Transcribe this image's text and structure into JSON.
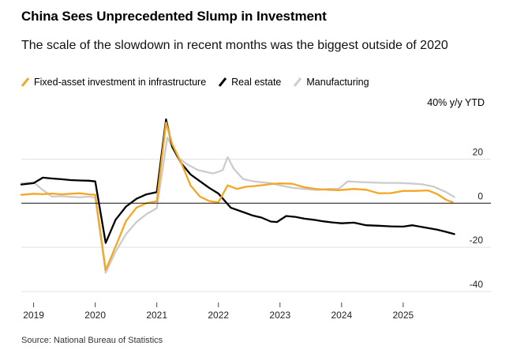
{
  "chart_data": {
    "type": "line",
    "title": "China Sees Unprecedented Slump in Investment",
    "subtitle": "The scale of the slowdown in recent months was the biggest outside of 2020",
    "unit_label": "40% y/y YTD",
    "source": "Source: National Bureau of Statistics",
    "ylim": [
      -45,
      42
    ],
    "xlim": [
      2018.8,
      2025.95
    ],
    "y_ticks": [
      {
        "value": 20,
        "label": "20"
      },
      {
        "value": 0,
        "label": "0"
      },
      {
        "value": -20,
        "label": "-20"
      },
      {
        "value": -40,
        "label": "-40"
      }
    ],
    "x_ticks": [
      {
        "value": 2019,
        "label": "2019"
      },
      {
        "value": 2020,
        "label": "2020"
      },
      {
        "value": 2021,
        "label": "2021"
      },
      {
        "value": 2022,
        "label": "2022"
      },
      {
        "value": 2023,
        "label": "2023"
      },
      {
        "value": 2024,
        "label": "2024"
      },
      {
        "value": 2025,
        "label": "2025"
      }
    ],
    "legend_position": "top-left",
    "series": [
      {
        "name": "Manufacturing",
        "color": "#cccccc",
        "points": [
          [
            2018.8,
            9
          ],
          [
            2019.0,
            9.5
          ],
          [
            2019.15,
            6
          ],
          [
            2019.3,
            3
          ],
          [
            2019.45,
            3.2
          ],
          [
            2019.6,
            2.9
          ],
          [
            2019.75,
            2.7
          ],
          [
            2019.9,
            3
          ],
          [
            2020.0,
            2.5
          ],
          [
            2020.17,
            -31.5
          ],
          [
            2020.33,
            -22
          ],
          [
            2020.5,
            -14
          ],
          [
            2020.67,
            -8.5
          ],
          [
            2020.83,
            -5
          ],
          [
            2021.0,
            -2.2
          ],
          [
            2021.17,
            29.8
          ],
          [
            2021.33,
            21
          ],
          [
            2021.5,
            17.5
          ],
          [
            2021.67,
            15
          ],
          [
            2021.83,
            14
          ],
          [
            2021.92,
            13.5
          ],
          [
            2022.07,
            15
          ],
          [
            2022.15,
            20.9
          ],
          [
            2022.25,
            15.6
          ],
          [
            2022.4,
            11
          ],
          [
            2022.55,
            10
          ],
          [
            2022.7,
            9.5
          ],
          [
            2022.85,
            9.1
          ],
          [
            2023.0,
            8.1
          ],
          [
            2023.2,
            7
          ],
          [
            2023.4,
            6.5
          ],
          [
            2023.6,
            6
          ],
          [
            2023.8,
            6.5
          ],
          [
            2023.95,
            6.5
          ],
          [
            2024.1,
            9.9
          ],
          [
            2024.3,
            9.6
          ],
          [
            2024.5,
            9.4
          ],
          [
            2024.7,
            9.2
          ],
          [
            2024.9,
            9.2
          ],
          [
            2025.1,
            9
          ],
          [
            2025.3,
            8.6
          ],
          [
            2025.5,
            7.5
          ],
          [
            2025.7,
            5
          ],
          [
            2025.83,
            2.8
          ]
        ]
      },
      {
        "name": "Real estate",
        "color": "#000000",
        "points": [
          [
            2018.8,
            8.5
          ],
          [
            2019.0,
            9.1
          ],
          [
            2019.15,
            11.6
          ],
          [
            2019.3,
            11.2
          ],
          [
            2019.45,
            10.9
          ],
          [
            2019.6,
            10.5
          ],
          [
            2019.75,
            10.3
          ],
          [
            2019.9,
            10.2
          ],
          [
            2020.0,
            9.9
          ],
          [
            2020.17,
            -18
          ],
          [
            2020.33,
            -7.5
          ],
          [
            2020.5,
            -1.5
          ],
          [
            2020.67,
            2
          ],
          [
            2020.83,
            4
          ],
          [
            2021.0,
            5
          ],
          [
            2021.15,
            38
          ],
          [
            2021.25,
            25.6
          ],
          [
            2021.4,
            18
          ],
          [
            2021.55,
            13
          ],
          [
            2021.7,
            10
          ],
          [
            2021.85,
            7
          ],
          [
            2022.0,
            4.4
          ],
          [
            2022.2,
            -2
          ],
          [
            2022.4,
            -4
          ],
          [
            2022.55,
            -5.5
          ],
          [
            2022.7,
            -6.5
          ],
          [
            2022.85,
            -8.3
          ],
          [
            2022.95,
            -8.5
          ],
          [
            2023.1,
            -5.8
          ],
          [
            2023.25,
            -6.2
          ],
          [
            2023.4,
            -7
          ],
          [
            2023.55,
            -7.5
          ],
          [
            2023.7,
            -8.2
          ],
          [
            2023.85,
            -8.7
          ],
          [
            2024.0,
            -9.1
          ],
          [
            2024.2,
            -8.8
          ],
          [
            2024.4,
            -10
          ],
          [
            2024.6,
            -10.2
          ],
          [
            2024.8,
            -10.5
          ],
          [
            2025.0,
            -10.6
          ],
          [
            2025.15,
            -10
          ],
          [
            2025.35,
            -11
          ],
          [
            2025.55,
            -12
          ],
          [
            2025.7,
            -13
          ],
          [
            2025.83,
            -14
          ]
        ]
      },
      {
        "name": "Fixed-asset investment in infrastructure",
        "color": "#f5a623",
        "points": [
          [
            2018.8,
            3.8
          ],
          [
            2019.0,
            4.3
          ],
          [
            2019.15,
            4.1
          ],
          [
            2019.3,
            4.4
          ],
          [
            2019.45,
            4.0
          ],
          [
            2019.6,
            4.3
          ],
          [
            2019.75,
            4.5
          ],
          [
            2019.9,
            4.0
          ],
          [
            2020.0,
            3.8
          ],
          [
            2020.17,
            -30.3
          ],
          [
            2020.33,
            -19.7
          ],
          [
            2020.5,
            -8
          ],
          [
            2020.67,
            -2
          ],
          [
            2020.83,
            0
          ],
          [
            2021.0,
            0.9
          ],
          [
            2021.15,
            36.6
          ],
          [
            2021.25,
            26.8
          ],
          [
            2021.4,
            18
          ],
          [
            2021.55,
            8
          ],
          [
            2021.7,
            3
          ],
          [
            2021.85,
            1
          ],
          [
            2022.0,
            0.4
          ],
          [
            2022.15,
            8.1
          ],
          [
            2022.3,
            6.5
          ],
          [
            2022.45,
            7.5
          ],
          [
            2022.6,
            7.8
          ],
          [
            2022.75,
            8.3
          ],
          [
            2022.85,
            8.7
          ],
          [
            2023.0,
            9
          ],
          [
            2023.2,
            8.8
          ],
          [
            2023.4,
            7.2
          ],
          [
            2023.6,
            6.4
          ],
          [
            2023.8,
            6.1
          ],
          [
            2023.95,
            5.9
          ],
          [
            2024.2,
            6.5
          ],
          [
            2024.4,
            6.1
          ],
          [
            2024.6,
            4.5
          ],
          [
            2024.8,
            4.6
          ],
          [
            2025.0,
            5.6
          ],
          [
            2025.2,
            5.6
          ],
          [
            2025.4,
            5.8
          ],
          [
            2025.55,
            4.2
          ],
          [
            2025.7,
            1.5
          ],
          [
            2025.8,
            0.5
          ]
        ]
      }
    ]
  }
}
